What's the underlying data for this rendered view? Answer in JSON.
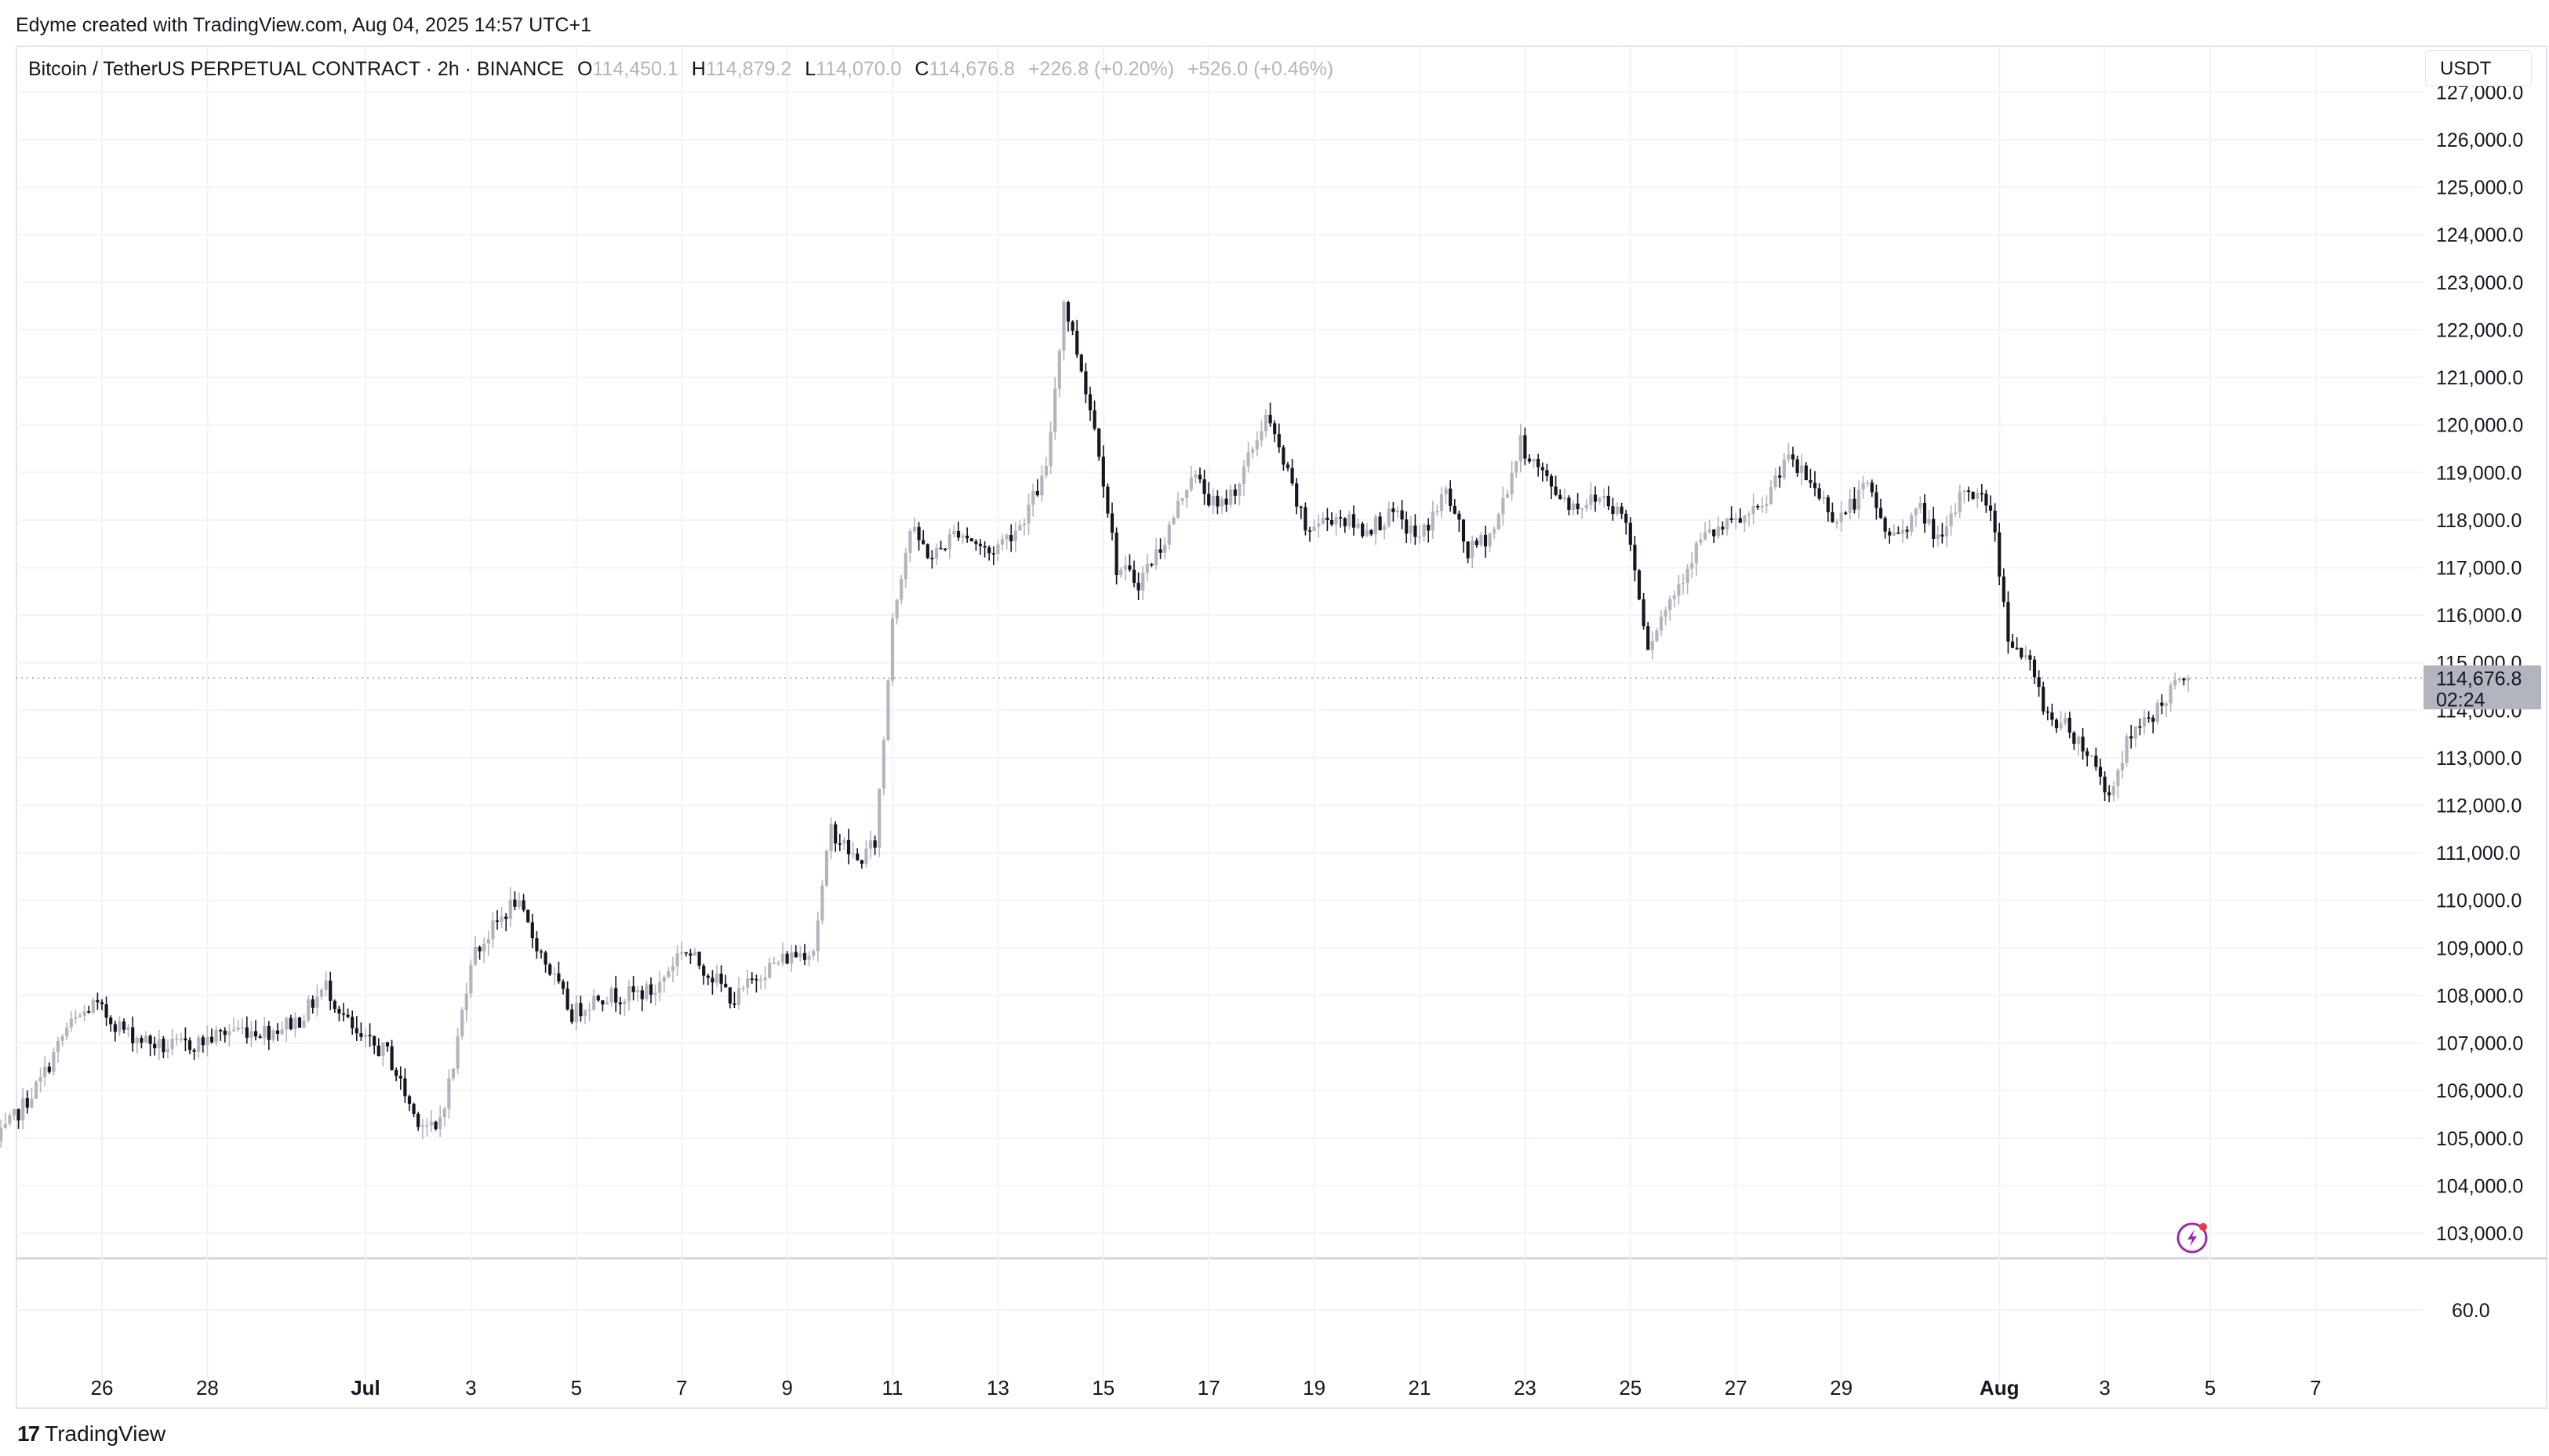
{
  "caption": "Edyme created with TradingView.com, Aug 04, 2025 14:57 UTC+1",
  "legend": {
    "symbol": "Bitcoin / TetherUS PERPETUAL CONTRACT · 2h · BINANCE",
    "o_label": "O",
    "o_value": "114,450.1",
    "h_label": "H",
    "h_value": "114,879.2",
    "l_label": "L",
    "l_value": "114,070.0",
    "c_label": "C",
    "c_value": "114,676.8",
    "change": "+226.8 (+0.20%)",
    "change2": "+526.0 (+0.46%)"
  },
  "currency": "USDT",
  "price_label": {
    "value": "114,676.8",
    "countdown": "02:24"
  },
  "footer": {
    "brand_mark": "17",
    "brand": "TradingView"
  },
  "colors": {
    "up": "#b2b5be",
    "down": "#131722",
    "grid": "#f0f3fa",
    "axis_text": "#131722",
    "label_bg": "#b2b5be",
    "badge": "#9c27b0",
    "badge_dot": "#f23645"
  },
  "chart_data": {
    "type": "candlestick",
    "interval": "2h",
    "price_ticks": [
      "103,000.0",
      "104,000.0",
      "105,000.0",
      "106,000.0",
      "107,000.0",
      "108,000.0",
      "109,000.0",
      "110,000.0",
      "111,000.0",
      "112,000.0",
      "113,000.0",
      "114,000.0",
      "115,000.0",
      "116,000.0",
      "117,000.0",
      "118,000.0",
      "119,000.0",
      "120,000.0",
      "121,000.0",
      "122,000.0",
      "123,000.0",
      "124,000.0",
      "125,000.0",
      "126,000.0",
      "127,000.0"
    ],
    "indicator_tick": "60.0",
    "x_ticks": [
      "26",
      "28",
      "Jul",
      "3",
      "5",
      "7",
      "9",
      "11",
      "13",
      "15",
      "17",
      "19",
      "21",
      "23",
      "25",
      "27",
      "29",
      "Aug",
      "3",
      "5",
      "7"
    ],
    "price_range": [
      102500,
      127200
    ],
    "last_price": 114676.8,
    "path": [
      [
        "24 Jun 00:00",
        104900
      ],
      [
        "24 Jun 20:00",
        106200
      ],
      [
        "25 Jun 08:00",
        107300
      ],
      [
        "25 Jun 20:00",
        107800
      ],
      [
        "26 Jun 12:00",
        107200
      ],
      [
        "27 Jun 04:00",
        106900
      ],
      [
        "27 Jun 20:00",
        107000
      ],
      [
        "28 Jun 12:00",
        107300
      ],
      [
        "29 Jun 04:00",
        107250
      ],
      [
        "29 Jun 18:00",
        107500
      ],
      [
        "30 Jun 06:00",
        108200
      ],
      [
        "30 Jun 20:00",
        107100
      ],
      [
        "1 Jul 10:00",
        106800
      ],
      [
        "1 Jul 22:00",
        105500
      ],
      [
        "2 Jul 08:00",
        105100
      ],
      [
        "2 Jul 16:00",
        106500
      ],
      [
        "3 Jul 00:00",
        108800
      ],
      [
        "3 Jul 10:00",
        109400
      ],
      [
        "3 Jul 20:00",
        110000
      ],
      [
        "4 Jul 10:00",
        108700
      ],
      [
        "4 Jul 22:00",
        107600
      ],
      [
        "5 Jul 10:00",
        108000
      ],
      [
        "5 Jul 22:00",
        108000
      ],
      [
        "6 Jul 12:00",
        108100
      ],
      [
        "7 Jul 00:00",
        109000
      ],
      [
        "7 Jul 12:00",
        108500
      ],
      [
        "8 Jul 00:00",
        107900
      ],
      [
        "8 Jul 12:00",
        108500
      ],
      [
        "9 Jul 00:00",
        108800
      ],
      [
        "9 Jul 12:00",
        109000
      ],
      [
        "9 Jul 20:00",
        111500
      ],
      [
        "10 Jul 08:00",
        110800
      ],
      [
        "10 Jul 16:00",
        111200
      ],
      [
        "10 Jul 20:00",
        113400
      ],
      [
        "11 Jul 00:00",
        116000
      ],
      [
        "11 Jul 08:00",
        117800
      ],
      [
        "11 Jul 18:00",
        117200
      ],
      [
        "12 Jul 06:00",
        117800
      ],
      [
        "12 Jul 20:00",
        117300
      ],
      [
        "13 Jul 10:00",
        117900
      ],
      [
        "13 Jul 22:00",
        119000
      ],
      [
        "14 Jul 06:00",
        122600
      ],
      [
        "14 Jul 14:00",
        121200
      ],
      [
        "14 Jul 22:00",
        119500
      ],
      [
        "15 Jul 06:00",
        117000
      ],
      [
        "15 Jul 16:00",
        116700
      ],
      [
        "16 Jul 04:00",
        117600
      ],
      [
        "16 Jul 16:00",
        119000
      ],
      [
        "17 Jul 04:00",
        118200
      ],
      [
        "17 Jul 14:00",
        118800
      ],
      [
        "18 Jul 02:00",
        120200
      ],
      [
        "18 Jul 10:00",
        119200
      ],
      [
        "18 Jul 20:00",
        117800
      ],
      [
        "19 Jul 10:00",
        118100
      ],
      [
        "19 Jul 22:00",
        117800
      ],
      [
        "20 Jul 12:00",
        118100
      ],
      [
        "21 Jul 00:00",
        117600
      ],
      [
        "21 Jul 12:00",
        118600
      ],
      [
        "21 Jul 22:00",
        117300
      ],
      [
        "22 Jul 10:00",
        117800
      ],
      [
        "22 Jul 22:00",
        119600
      ],
      [
        "23 Jul 12:00",
        118700
      ],
      [
        "23 Jul 22:00",
        118300
      ],
      [
        "24 Jul 12:00",
        118500
      ],
      [
        "24 Jul 22:00",
        118000
      ],
      [
        "25 Jul 08:00",
        115400
      ],
      [
        "25 Jul 20:00",
        116500
      ],
      [
        "26 Jul 08:00",
        117600
      ],
      [
        "26 Jul 22:00",
        117900
      ],
      [
        "27 Jul 12:00",
        118200
      ],
      [
        "27 Jul 22:00",
        119300
      ],
      [
        "28 Jul 10:00",
        118800
      ],
      [
        "28 Jul 22:00",
        118000
      ],
      [
        "29 Jul 12:00",
        118700
      ],
      [
        "29 Jul 22:00",
        117600
      ],
      [
        "30 Jul 12:00",
        118200
      ],
      [
        "30 Jul 22:00",
        117500
      ],
      [
        "31 Jul 08:00",
        118700
      ],
      [
        "31 Jul 20:00",
        118300
      ],
      [
        "1 Aug 04:00",
        115600
      ],
      [
        "1 Aug 14:00",
        114900
      ],
      [
        "1 Aug 22:00",
        113900
      ],
      [
        "2 Aug 08:00",
        113600
      ],
      [
        "2 Aug 18:00",
        113000
      ],
      [
        "3 Aug 02:00",
        112200
      ],
      [
        "3 Aug 10:00",
        113300
      ],
      [
        "3 Aug 20:00",
        113800
      ],
      [
        "4 Aug 06:00",
        114400
      ],
      [
        "4 Aug 14:00",
        114677
      ]
    ]
  }
}
